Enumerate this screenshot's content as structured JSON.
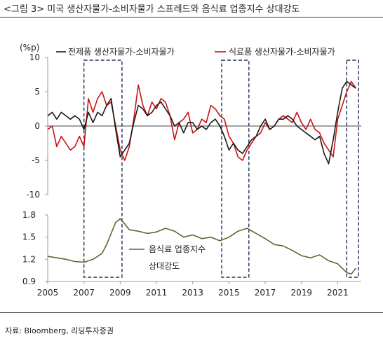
{
  "header": {
    "title": "<그림 3> 미국 생산자물가-소비자물가 스프레드와 음식료 업종지수 상대강도"
  },
  "footer": {
    "source": "자료: Bloomberg, 리딩투자증권"
  },
  "colors": {
    "total_ppi_cpi": "#1a1a1a",
    "food_ppi_cpi": "#cc1111",
    "food_rel_strength": "#5a6b2e",
    "highlight_box": "#1f2f5a"
  },
  "chart_data": [
    {
      "type": "line",
      "panel": "top",
      "ylabel": "(%p)",
      "ylim": [
        -10,
        10
      ],
      "yticks": [
        10,
        5,
        0,
        -5,
        -10
      ],
      "zero_line": true,
      "legend_position": "top",
      "series": [
        {
          "name": "전제품 생산자물가-소비자물가",
          "color": "#1a1a1a",
          "x": [
            2005.0,
            2005.25,
            2005.5,
            2005.75,
            2006.0,
            2006.25,
            2006.5,
            2006.75,
            2007.0,
            2007.25,
            2007.5,
            2007.75,
            2008.0,
            2008.25,
            2008.5,
            2008.75,
            2009.0,
            2009.25,
            2009.5,
            2009.75,
            2010.0,
            2010.25,
            2010.5,
            2010.75,
            2011.0,
            2011.25,
            2011.5,
            2011.75,
            2012.0,
            2012.25,
            2012.5,
            2012.75,
            2013.0,
            2013.25,
            2013.5,
            2013.75,
            2014.0,
            2014.25,
            2014.5,
            2014.75,
            2015.0,
            2015.25,
            2015.5,
            2015.75,
            2016.0,
            2016.25,
            2016.5,
            2016.75,
            2017.0,
            2017.25,
            2017.5,
            2017.75,
            2018.0,
            2018.25,
            2018.5,
            2018.75,
            2019.0,
            2019.25,
            2019.5,
            2019.75,
            2020.0,
            2020.25,
            2020.5,
            2020.75,
            2021.0,
            2021.25,
            2021.5,
            2021.75,
            2022.0
          ],
          "values": [
            1.5,
            2.0,
            1.0,
            2.0,
            1.5,
            1.0,
            1.5,
            1.0,
            -0.5,
            2.0,
            0.5,
            2.0,
            1.5,
            3.0,
            4.0,
            -0.5,
            -4.5,
            -3.5,
            -2.5,
            0.5,
            3.0,
            2.5,
            1.5,
            2.0,
            3.0,
            3.5,
            2.5,
            1.5,
            0.0,
            0.5,
            -1.0,
            0.5,
            0.5,
            -0.5,
            0.0,
            -0.5,
            0.5,
            1.0,
            0.0,
            -1.5,
            -3.5,
            -2.5,
            -3.5,
            -4.0,
            -3.0,
            -2.0,
            -1.5,
            0.0,
            1.0,
            -0.5,
            0.0,
            1.0,
            1.0,
            1.5,
            1.0,
            0.0,
            -0.5,
            -1.0,
            -1.5,
            -2.0,
            -1.5,
            -4.0,
            -5.5,
            -2.0,
            2.0,
            5.5,
            6.5,
            6.0,
            5.5
          ]
        },
        {
          "name": "식료품 생산자물가-소비자물가",
          "color": "#cc1111",
          "x": [
            2005.0,
            2005.25,
            2005.5,
            2005.75,
            2006.0,
            2006.25,
            2006.5,
            2006.75,
            2007.0,
            2007.25,
            2007.5,
            2007.75,
            2008.0,
            2008.25,
            2008.5,
            2008.75,
            2009.0,
            2009.25,
            2009.5,
            2009.75,
            2010.0,
            2010.25,
            2010.5,
            2010.75,
            2011.0,
            2011.25,
            2011.5,
            2011.75,
            2012.0,
            2012.25,
            2012.5,
            2012.75,
            2013.0,
            2013.25,
            2013.5,
            2013.75,
            2014.0,
            2014.25,
            2014.5,
            2014.75,
            2015.0,
            2015.25,
            2015.5,
            2015.75,
            2016.0,
            2016.25,
            2016.5,
            2016.75,
            2017.0,
            2017.25,
            2017.5,
            2017.75,
            2018.0,
            2018.25,
            2018.5,
            2018.75,
            2019.0,
            2019.25,
            2019.5,
            2019.75,
            2020.0,
            2020.25,
            2020.5,
            2020.75,
            2021.0,
            2021.25,
            2021.5,
            2021.75,
            2022.0
          ],
          "values": [
            -0.5,
            0.0,
            -3.0,
            -1.5,
            -2.5,
            -3.5,
            -3.0,
            -1.5,
            -3.0,
            4.0,
            2.0,
            4.0,
            5.0,
            3.0,
            3.5,
            0.0,
            -3.5,
            -5.0,
            -3.0,
            1.0,
            6.0,
            3.0,
            1.5,
            3.5,
            2.5,
            4.0,
            3.5,
            1.5,
            -2.0,
            0.5,
            1.0,
            2.0,
            -1.0,
            -0.5,
            1.0,
            0.5,
            3.0,
            2.5,
            1.5,
            1.0,
            -1.5,
            -2.5,
            -4.5,
            -5.0,
            -3.5,
            -2.5,
            -1.5,
            -1.0,
            0.5,
            -0.5,
            0.0,
            1.0,
            1.5,
            1.0,
            0.5,
            2.0,
            0.5,
            -0.5,
            1.0,
            -0.5,
            -1.0,
            -2.5,
            -3.5,
            -4.5,
            1.0,
            3.0,
            5.0,
            6.5,
            5.5
          ]
        }
      ],
      "highlight_periods": [
        {
          "from": 2007.0,
          "to": 2009.1
        },
        {
          "from": 2014.6,
          "to": 2016.1
        },
        {
          "from": 2021.5,
          "to": 2022.15
        }
      ]
    },
    {
      "type": "line",
      "panel": "bottom",
      "ylim": [
        0.9,
        1.8
      ],
      "yticks": [
        1.8,
        1.5,
        1.2,
        0.9
      ],
      "legend_position": "bottom-center",
      "series": [
        {
          "name": "음식료 업종지수 상대강도",
          "color": "#5a6b2e",
          "x": [
            2005.0,
            2005.5,
            2006.0,
            2006.5,
            2007.0,
            2007.5,
            2008.0,
            2008.25,
            2008.5,
            2008.75,
            2009.0,
            2009.25,
            2009.5,
            2010.0,
            2010.5,
            2011.0,
            2011.5,
            2012.0,
            2012.5,
            2013.0,
            2013.5,
            2014.0,
            2014.5,
            2015.0,
            2015.5,
            2016.0,
            2016.5,
            2017.0,
            2017.5,
            2018.0,
            2018.5,
            2019.0,
            2019.5,
            2020.0,
            2020.5,
            2021.0,
            2021.5,
            2021.75,
            2022.0
          ],
          "values": [
            1.24,
            1.22,
            1.2,
            1.17,
            1.16,
            1.2,
            1.28,
            1.4,
            1.55,
            1.7,
            1.75,
            1.68,
            1.6,
            1.58,
            1.55,
            1.57,
            1.62,
            1.58,
            1.5,
            1.53,
            1.48,
            1.5,
            1.45,
            1.5,
            1.58,
            1.62,
            1.55,
            1.48,
            1.4,
            1.38,
            1.32,
            1.25,
            1.22,
            1.26,
            1.18,
            1.14,
            1.02,
            1.0,
            1.08
          ]
        }
      ]
    }
  ],
  "xaxis": {
    "xlim": [
      2005,
      2022.3
    ],
    "ticks": [
      "2005",
      "2007",
      "2009",
      "2011",
      "2013",
      "2015",
      "2017",
      "2019",
      "2021"
    ]
  },
  "legend": {
    "total_label": "전제품 생산자물가-소비자물가",
    "food_label": "식료품 생산자물가-소비자물가",
    "rs_label_line1": "음식료 업종지수",
    "rs_label_line2": "상대강도"
  }
}
